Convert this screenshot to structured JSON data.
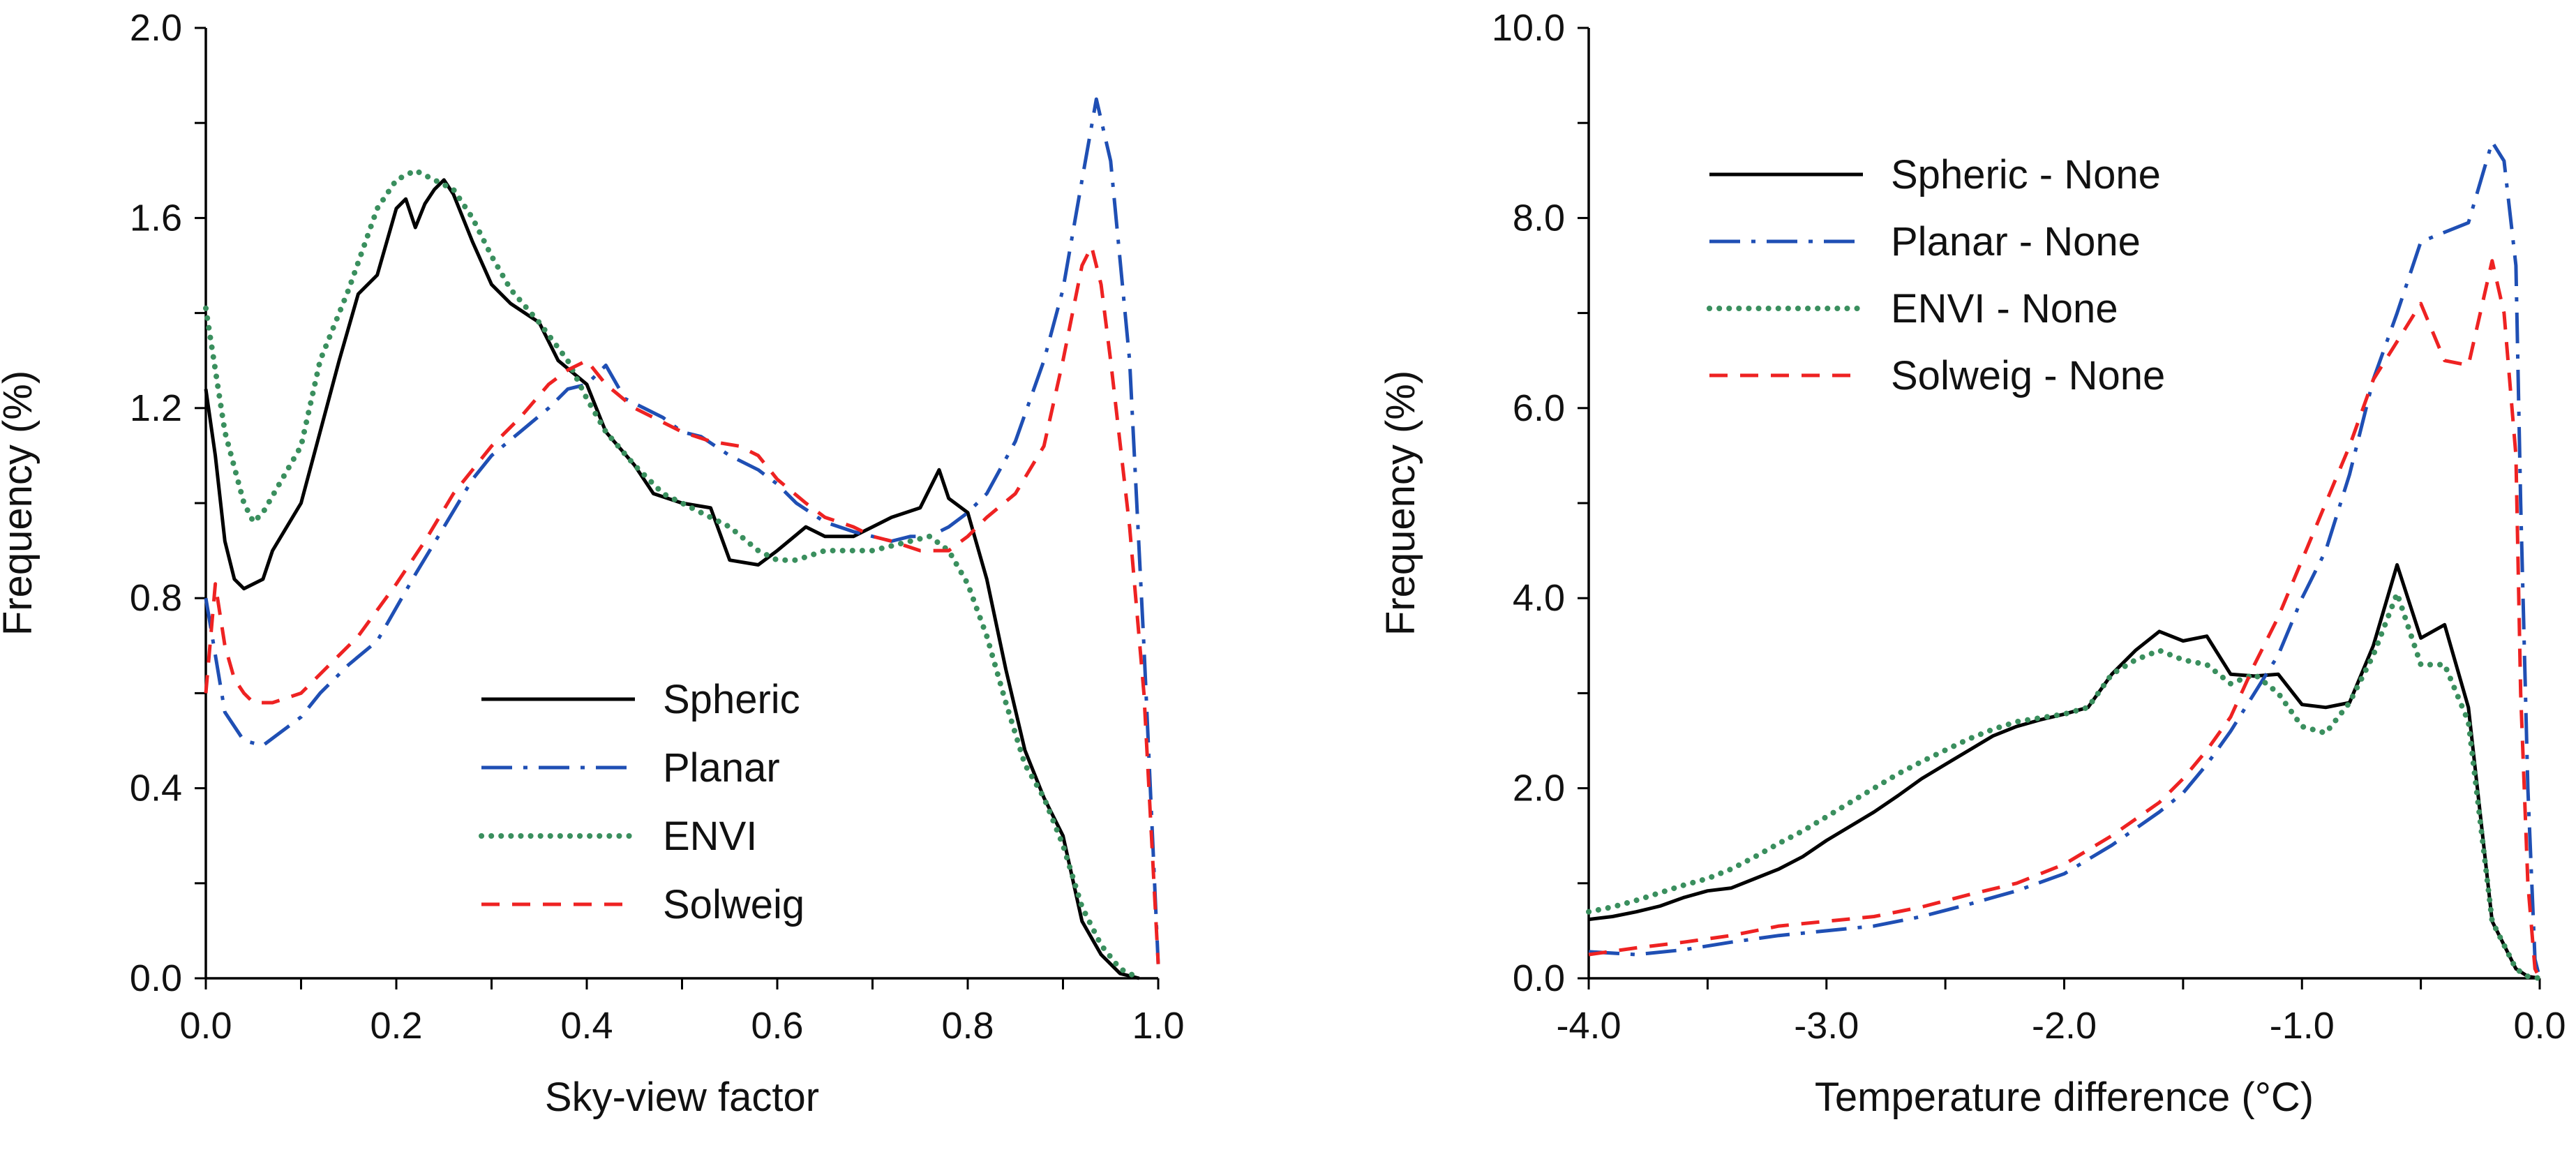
{
  "chart_data": [
    {
      "type": "line",
      "xlabel": "Sky-view factor",
      "ylabel": "Frequency (%)",
      "xlim": [
        0,
        1
      ],
      "ylim": [
        0,
        2
      ],
      "xticks": [
        0,
        0.2,
        0.4,
        0.6,
        0.8,
        1.0
      ],
      "xtick_labels": [
        "0.0",
        "0.2",
        "0.4",
        "0.6",
        "0.8",
        "1.0"
      ],
      "yticks": [
        0,
        0.4,
        0.8,
        1.2,
        1.6,
        2.0
      ],
      "ytick_labels": [
        "0.0",
        "0.4",
        "0.8",
        "1.2",
        "1.6",
        "2.0"
      ],
      "grid": false,
      "legend_position": "bottom-center",
      "series": [
        {
          "name": "Spheric",
          "color": "#000000",
          "dash": "solid",
          "x": [
            0,
            0.01,
            0.02,
            0.03,
            0.04,
            0.06,
            0.07,
            0.1,
            0.12,
            0.14,
            0.16,
            0.18,
            0.2,
            0.21,
            0.22,
            0.23,
            0.24,
            0.25,
            0.26,
            0.28,
            0.3,
            0.32,
            0.35,
            0.37,
            0.4,
            0.42,
            0.45,
            0.47,
            0.5,
            0.53,
            0.55,
            0.58,
            0.6,
            0.63,
            0.65,
            0.68,
            0.7,
            0.72,
            0.75,
            0.77,
            0.78,
            0.8,
            0.82,
            0.84,
            0.86,
            0.88,
            0.9,
            0.92,
            0.94,
            0.96,
            0.98
          ],
          "y": [
            1.24,
            1.1,
            0.92,
            0.84,
            0.82,
            0.84,
            0.9,
            1.0,
            1.15,
            1.3,
            1.44,
            1.48,
            1.62,
            1.64,
            1.58,
            1.63,
            1.66,
            1.68,
            1.65,
            1.55,
            1.46,
            1.42,
            1.38,
            1.3,
            1.25,
            1.15,
            1.08,
            1.02,
            1.0,
            0.99,
            0.88,
            0.87,
            0.9,
            0.95,
            0.93,
            0.93,
            0.95,
            0.97,
            0.99,
            1.07,
            1.01,
            0.98,
            0.84,
            0.65,
            0.48,
            0.38,
            0.3,
            0.12,
            0.05,
            0.01,
            0.0
          ]
        },
        {
          "name": "Planar",
          "color": "#1f4fb4",
          "dash": "dashdot",
          "x": [
            0,
            0.02,
            0.04,
            0.06,
            0.08,
            0.1,
            0.12,
            0.15,
            0.18,
            0.2,
            0.22,
            0.25,
            0.28,
            0.3,
            0.33,
            0.36,
            0.38,
            0.4,
            0.42,
            0.44,
            0.46,
            0.48,
            0.5,
            0.52,
            0.55,
            0.58,
            0.6,
            0.62,
            0.65,
            0.68,
            0.7,
            0.72,
            0.74,
            0.76,
            0.78,
            0.8,
            0.82,
            0.85,
            0.88,
            0.9,
            0.92,
            0.935,
            0.95,
            0.97,
            0.985,
            1.0
          ],
          "y": [
            0.8,
            0.56,
            0.5,
            0.49,
            0.52,
            0.55,
            0.6,
            0.66,
            0.71,
            0.78,
            0.85,
            0.95,
            1.05,
            1.1,
            1.15,
            1.2,
            1.24,
            1.25,
            1.29,
            1.22,
            1.2,
            1.18,
            1.15,
            1.14,
            1.1,
            1.07,
            1.04,
            1.0,
            0.96,
            0.94,
            0.93,
            0.92,
            0.93,
            0.93,
            0.95,
            0.98,
            1.02,
            1.13,
            1.3,
            1.45,
            1.68,
            1.85,
            1.72,
            1.3,
            0.7,
            0.03
          ]
        },
        {
          "name": "ENVI",
          "color": "#3a8f5e",
          "dash": "dotted",
          "x": [
            0,
            0.02,
            0.04,
            0.05,
            0.06,
            0.08,
            0.1,
            0.12,
            0.15,
            0.18,
            0.2,
            0.22,
            0.24,
            0.26,
            0.28,
            0.3,
            0.32,
            0.35,
            0.38,
            0.4,
            0.42,
            0.45,
            0.48,
            0.5,
            0.52,
            0.55,
            0.58,
            0.6,
            0.62,
            0.65,
            0.68,
            0.7,
            0.72,
            0.74,
            0.76,
            0.78,
            0.8,
            0.82,
            0.84,
            0.86,
            0.88,
            0.9,
            0.92,
            0.94,
            0.96,
            0.98
          ],
          "y": [
            1.41,
            1.15,
            1.0,
            0.96,
            0.98,
            1.05,
            1.12,
            1.3,
            1.45,
            1.62,
            1.68,
            1.7,
            1.68,
            1.66,
            1.6,
            1.52,
            1.45,
            1.38,
            1.3,
            1.22,
            1.15,
            1.08,
            1.02,
            1.0,
            0.98,
            0.95,
            0.9,
            0.88,
            0.88,
            0.9,
            0.9,
            0.9,
            0.91,
            0.92,
            0.93,
            0.9,
            0.83,
            0.72,
            0.58,
            0.45,
            0.38,
            0.28,
            0.15,
            0.07,
            0.02,
            0.0
          ]
        },
        {
          "name": "Solweig",
          "color": "#ee2222",
          "dash": "dashed",
          "x": [
            0,
            0.01,
            0.02,
            0.03,
            0.04,
            0.05,
            0.07,
            0.1,
            0.13,
            0.16,
            0.2,
            0.23,
            0.26,
            0.3,
            0.33,
            0.36,
            0.38,
            0.4,
            0.42,
            0.45,
            0.48,
            0.5,
            0.53,
            0.56,
            0.58,
            0.6,
            0.63,
            0.65,
            0.68,
            0.7,
            0.72,
            0.75,
            0.78,
            0.8,
            0.82,
            0.85,
            0.88,
            0.9,
            0.92,
            0.93,
            0.94,
            0.95,
            0.97,
            0.985,
            1.0
          ],
          "y": [
            0.6,
            0.83,
            0.7,
            0.63,
            0.6,
            0.58,
            0.58,
            0.6,
            0.66,
            0.72,
            0.83,
            0.92,
            1.02,
            1.12,
            1.18,
            1.25,
            1.28,
            1.3,
            1.25,
            1.2,
            1.17,
            1.15,
            1.13,
            1.12,
            1.1,
            1.05,
            1.0,
            0.97,
            0.95,
            0.93,
            0.92,
            0.9,
            0.9,
            0.93,
            0.97,
            1.02,
            1.12,
            1.3,
            1.5,
            1.54,
            1.46,
            1.3,
            0.95,
            0.6,
            0.03
          ]
        }
      ]
    },
    {
      "type": "line",
      "xlabel": "Temperature difference (°C)",
      "ylabel": "Frequency (%)",
      "xlim": [
        -4,
        0
      ],
      "ylim": [
        0,
        10
      ],
      "xticks": [
        -4,
        -3,
        -2,
        -1,
        0
      ],
      "xtick_labels": [
        "-4.0",
        "-3.0",
        "-2.0",
        "-1.0",
        "0.0"
      ],
      "yticks": [
        0,
        2,
        4,
        6,
        8,
        10
      ],
      "ytick_labels": [
        "0.0",
        "2.0",
        "4.0",
        "6.0",
        "8.0",
        "10.0"
      ],
      "grid": false,
      "legend_position": "top-left",
      "series": [
        {
          "name": "Spheric - None",
          "color": "#000000",
          "dash": "solid",
          "x": [
            -4.0,
            -3.9,
            -3.8,
            -3.7,
            -3.6,
            -3.5,
            -3.4,
            -3.3,
            -3.2,
            -3.1,
            -3.0,
            -2.9,
            -2.8,
            -2.7,
            -2.6,
            -2.5,
            -2.4,
            -2.3,
            -2.2,
            -2.1,
            -2.0,
            -1.9,
            -1.8,
            -1.7,
            -1.6,
            -1.5,
            -1.4,
            -1.3,
            -1.2,
            -1.1,
            -1.0,
            -0.9,
            -0.8,
            -0.7,
            -0.6,
            -0.5,
            -0.4,
            -0.3,
            -0.2,
            -0.1,
            -0.05,
            0.0
          ],
          "y": [
            0.62,
            0.65,
            0.7,
            0.76,
            0.85,
            0.92,
            0.95,
            1.05,
            1.15,
            1.28,
            1.45,
            1.6,
            1.75,
            1.92,
            2.1,
            2.25,
            2.4,
            2.55,
            2.65,
            2.72,
            2.78,
            2.85,
            3.2,
            3.45,
            3.65,
            3.55,
            3.6,
            3.2,
            3.18,
            3.2,
            2.88,
            2.85,
            2.9,
            3.5,
            4.35,
            3.58,
            3.72,
            2.85,
            0.6,
            0.1,
            0.02,
            0.0
          ]
        },
        {
          "name": "Planar - None",
          "color": "#1f4fb4",
          "dash": "dashdot",
          "x": [
            -4.0,
            -3.8,
            -3.6,
            -3.4,
            -3.2,
            -3.0,
            -2.8,
            -2.6,
            -2.4,
            -2.2,
            -2.0,
            -1.8,
            -1.6,
            -1.5,
            -1.4,
            -1.3,
            -1.2,
            -1.1,
            -1.0,
            -0.9,
            -0.8,
            -0.7,
            -0.6,
            -0.5,
            -0.4,
            -0.3,
            -0.2,
            -0.15,
            -0.1,
            -0.08,
            -0.05,
            -0.02,
            0.0
          ],
          "y": [
            0.28,
            0.25,
            0.3,
            0.38,
            0.45,
            0.5,
            0.55,
            0.65,
            0.78,
            0.92,
            1.1,
            1.4,
            1.75,
            1.95,
            2.25,
            2.6,
            3.0,
            3.4,
            4.0,
            4.5,
            5.3,
            6.3,
            7.0,
            7.75,
            7.85,
            7.95,
            8.8,
            8.6,
            7.5,
            5.0,
            2.0,
            0.2,
            0.0
          ]
        },
        {
          "name": "ENVI - None",
          "color": "#3a8f5e",
          "dash": "dotted",
          "x": [
            -4.0,
            -3.9,
            -3.8,
            -3.7,
            -3.6,
            -3.5,
            -3.4,
            -3.3,
            -3.2,
            -3.1,
            -3.0,
            -2.9,
            -2.8,
            -2.7,
            -2.6,
            -2.5,
            -2.4,
            -2.3,
            -2.2,
            -2.1,
            -2.0,
            -1.9,
            -1.8,
            -1.7,
            -1.6,
            -1.5,
            -1.4,
            -1.3,
            -1.2,
            -1.1,
            -1.0,
            -0.9,
            -0.8,
            -0.7,
            -0.6,
            -0.5,
            -0.4,
            -0.3,
            -0.2,
            -0.1,
            -0.05,
            0.0
          ],
          "y": [
            0.7,
            0.75,
            0.82,
            0.9,
            0.98,
            1.05,
            1.15,
            1.28,
            1.42,
            1.55,
            1.7,
            1.85,
            2.0,
            2.15,
            2.28,
            2.4,
            2.52,
            2.62,
            2.7,
            2.74,
            2.78,
            2.85,
            3.2,
            3.35,
            3.45,
            3.35,
            3.3,
            3.1,
            3.2,
            3.0,
            2.65,
            2.58,
            2.9,
            3.4,
            4.05,
            3.3,
            3.3,
            2.7,
            0.6,
            0.1,
            0.02,
            0.0
          ]
        },
        {
          "name": "Solweig - None",
          "color": "#ee2222",
          "dash": "dashed",
          "x": [
            -4.0,
            -3.8,
            -3.6,
            -3.4,
            -3.2,
            -3.0,
            -2.8,
            -2.6,
            -2.4,
            -2.2,
            -2.0,
            -1.8,
            -1.6,
            -1.5,
            -1.4,
            -1.3,
            -1.2,
            -1.1,
            -1.0,
            -0.9,
            -0.8,
            -0.7,
            -0.6,
            -0.5,
            -0.4,
            -0.3,
            -0.2,
            -0.15,
            -0.1,
            -0.08,
            -0.05,
            -0.02,
            0.0
          ],
          "y": [
            0.25,
            0.32,
            0.38,
            0.45,
            0.55,
            0.6,
            0.65,
            0.75,
            0.88,
            1.0,
            1.2,
            1.5,
            1.85,
            2.1,
            2.4,
            2.75,
            3.3,
            3.8,
            4.4,
            5.0,
            5.6,
            6.3,
            6.7,
            7.1,
            6.5,
            6.45,
            7.55,
            7.0,
            5.5,
            3.0,
            1.0,
            0.1,
            0.0
          ]
        }
      ]
    }
  ]
}
